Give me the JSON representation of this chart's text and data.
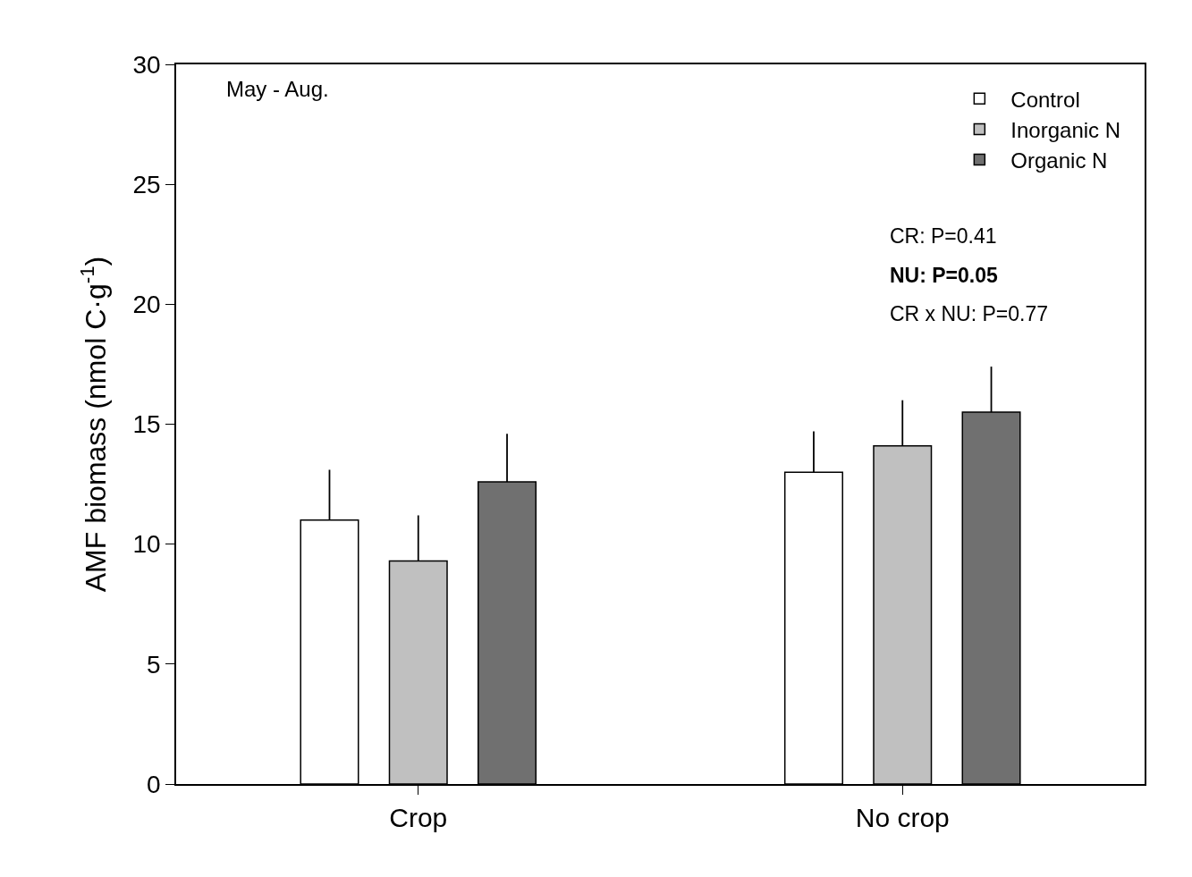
{
  "chart_data": {
    "type": "bar",
    "ylabel": "AMF biomass (nmol C·g$^{-1}$)",
    "categories": [
      "Crop",
      "No crop"
    ],
    "series": [
      {
        "name": "Control",
        "color": "#ffffff",
        "values": [
          11.0,
          13.0
        ],
        "errors": [
          [
            11.0,
            13.1
          ],
          [
            13.0,
            14.7
          ]
        ]
      },
      {
        "name": "Inorganic N",
        "color": "#c0c0c0",
        "values": [
          9.3,
          14.1
        ],
        "errors": [
          [
            9.3,
            11.2
          ],
          [
            14.1,
            16.0
          ]
        ]
      },
      {
        "name": "Organic N",
        "color": "#707070",
        "values": [
          12.6,
          15.5
        ],
        "errors": [
          [
            12.6,
            14.6
          ],
          [
            15.5,
            17.4
          ]
        ]
      }
    ],
    "ylim": [
      0,
      30
    ],
    "yticks": [
      0,
      5,
      10,
      15,
      20,
      25,
      30
    ],
    "grid": false,
    "legend": "top right",
    "annotations": [
      "May - Aug.",
      "CR: P=0.41",
      "NU: P=0.05",
      "CR x NU: P=0.77"
    ]
  }
}
